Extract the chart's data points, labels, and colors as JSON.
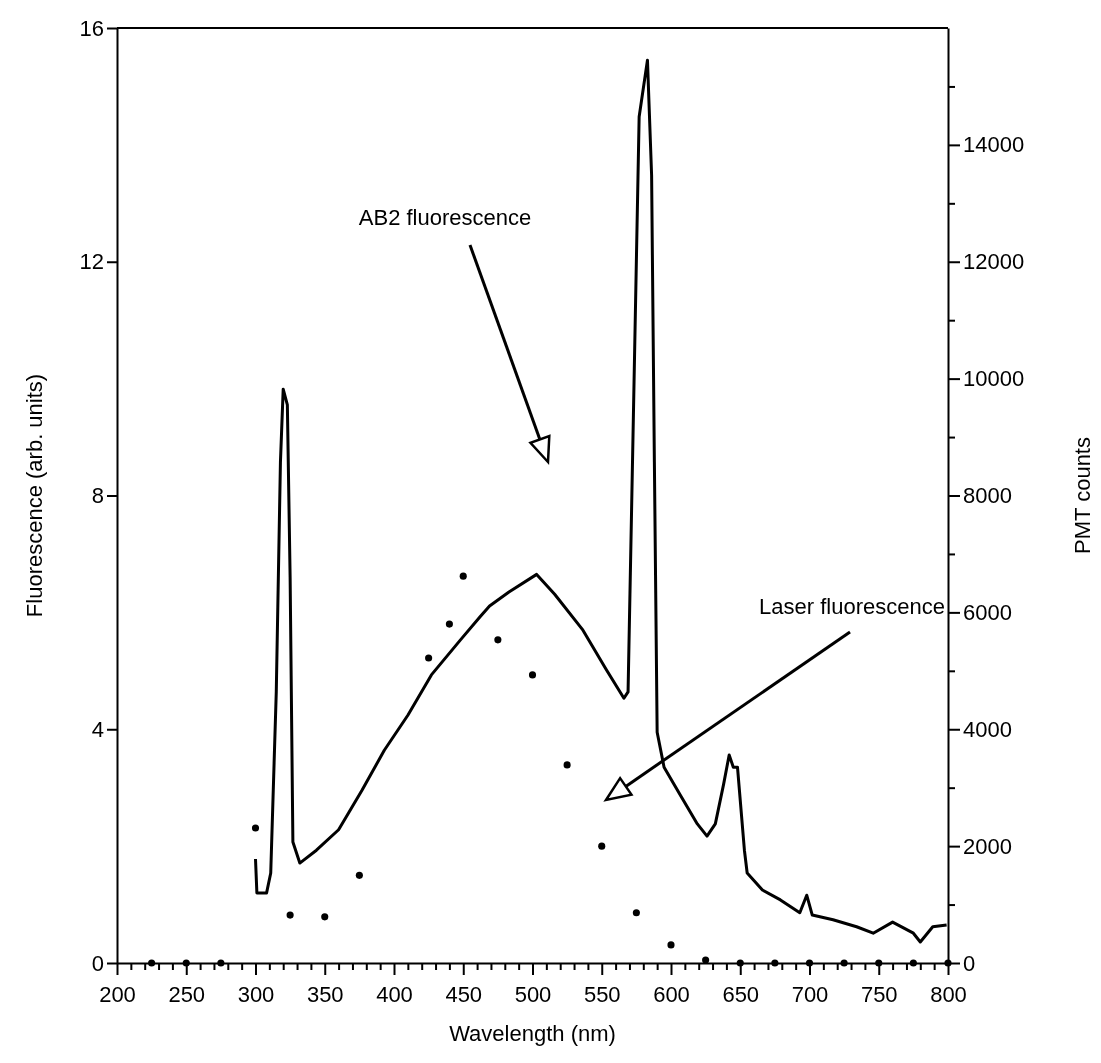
{
  "chart_data": {
    "type": "line",
    "xlabel": "Wavelength (nm)",
    "ylabel": "Fluorescence (arb. units)",
    "y2label": "PMT counts",
    "xlim": [
      200,
      800
    ],
    "xticks": [
      200,
      {
        "value": 210,
        "label": null
      },
      {
        "value": 220,
        "label": null
      },
      {
        "value": 230,
        "label": null
      },
      {
        "value": 240,
        "label": null
      },
      250,
      {
        "value": 260,
        "label": null
      },
      {
        "value": 270,
        "label": null
      },
      {
        "value": 280,
        "label": null
      },
      {
        "value": 290,
        "label": null
      },
      300,
      {
        "value": 310,
        "label": null
      },
      {
        "value": 320,
        "label": null
      },
      {
        "value": 330,
        "label": null
      },
      {
        "value": 340,
        "label": null
      },
      350,
      {
        "value": 360,
        "label": null
      },
      {
        "value": 370,
        "label": null
      },
      {
        "value": 380,
        "label": null
      },
      {
        "value": 390,
        "label": null
      },
      400,
      {
        "value": 410,
        "label": null
      },
      {
        "value": 420,
        "label": null
      },
      {
        "value": 430,
        "label": null
      },
      {
        "value": 440,
        "label": null
      },
      450,
      {
        "value": 460,
        "label": null
      },
      {
        "value": 470,
        "label": null
      },
      {
        "value": 480,
        "label": null
      },
      {
        "value": 490,
        "label": null
      },
      500,
      {
        "value": 510,
        "label": null
      },
      {
        "value": 520,
        "label": null
      },
      {
        "value": 530,
        "label": null
      },
      {
        "value": 540,
        "label": null
      },
      550,
      {
        "value": 560,
        "label": null
      },
      {
        "value": 570,
        "label": null
      },
      {
        "value": 580,
        "label": null
      },
      {
        "value": 590,
        "label": null
      },
      600,
      {
        "value": 610,
        "label": null
      },
      {
        "value": 620,
        "label": null
      },
      {
        "value": 630,
        "label": null
      },
      {
        "value": 640,
        "label": null
      },
      650,
      {
        "value": 660,
        "label": null
      },
      {
        "value": 670,
        "label": null
      },
      {
        "value": 680,
        "label": null
      },
      {
        "value": 690,
        "label": null
      },
      700,
      {
        "value": 710,
        "label": null
      },
      {
        "value": 720,
        "label": null
      },
      {
        "value": 730,
        "label": null
      },
      {
        "value": 740,
        "label": null
      },
      750,
      {
        "value": 760,
        "label": null
      },
      {
        "value": 770,
        "label": null
      },
      {
        "value": 780,
        "label": null
      },
      {
        "value": 790,
        "label": null
      },
      800
    ],
    "ylim": [
      0,
      16
    ],
    "yticks": [
      0,
      4,
      8,
      12,
      16
    ],
    "y2lim": [
      0,
      16000
    ],
    "y2ticks": [
      0,
      {
        "value": 1000,
        "label": null
      },
      2000,
      {
        "value": 3000,
        "label": null
      },
      4000,
      {
        "value": 5000,
        "label": null
      },
      6000,
      {
        "value": 7000,
        "label": null
      },
      8000,
      {
        "value": 9000,
        "label": null
      },
      10000,
      {
        "value": 11000,
        "label": null
      },
      12000,
      {
        "value": 13000,
        "label": null
      },
      14000,
      {
        "value": 15000,
        "label": null
      }
    ],
    "series": [
      {
        "type": "scatter",
        "color": "#000000",
        "marker": "circle",
        "x": [
          225,
          250,
          275,
          300,
          325,
          350,
          375,
          425,
          440,
          450,
          475,
          500,
          525,
          550,
          575,
          600,
          625,
          650,
          675,
          700,
          725,
          750,
          775,
          800
        ],
        "values": [
          0,
          0,
          0,
          2.31,
          0.82,
          0.79,
          1.5,
          5.22,
          5.8,
          6.62,
          5.53,
          4.93,
          3.39,
          2.0,
          0.86,
          0.31,
          0.05,
          0,
          0,
          0,
          0,
          0,
          0,
          0
        ]
      },
      {
        "axis": "y2",
        "color": "#000000",
        "marker": "none",
        "x": [
          300,
          301,
          308,
          311,
          315,
          318,
          320,
          323,
          325,
          327,
          332,
          344,
          360,
          377,
          393,
          410,
          427,
          448,
          462,
          469,
          483,
          503,
          516,
          536,
          553,
          566,
          569,
          573,
          577,
          583,
          586,
          588,
          590,
          595,
          607,
          619,
          626,
          632,
          638,
          642,
          645,
          648,
          653,
          655,
          666,
          679,
          693,
          698,
          702,
          717,
          734,
          746,
          760,
          775,
          780,
          789,
          799
        ],
        "values": [
          1780,
          1200,
          1200,
          1540,
          4640,
          8570,
          9820,
          9550,
          6600,
          2070,
          1710,
          1930,
          2280,
          2960,
          3640,
          4240,
          4930,
          5530,
          5920,
          6110,
          6350,
          6650,
          6310,
          5710,
          5030,
          4530,
          4640,
          9550,
          14480,
          15450,
          13480,
          8570,
          3950,
          3350,
          2860,
          2380,
          2170,
          2380,
          3060,
          3560,
          3350,
          3350,
          1930,
          1540,
          1250,
          1080,
          860,
          1160,
          820,
          740,
          620,
          510,
          700,
          510,
          360,
          620,
          650
        ]
      }
    ],
    "annotations": [
      "AB2 fluorescence",
      "Laser fluorescence"
    ]
  }
}
